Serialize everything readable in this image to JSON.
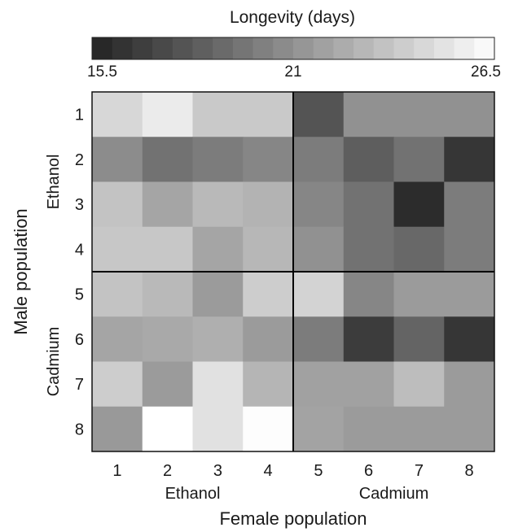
{
  "chart_data": {
    "type": "heatmap",
    "title": "",
    "xlabel": "Female population",
    "ylabel": "Male population",
    "x_categories": [
      "1",
      "2",
      "3",
      "4",
      "5",
      "6",
      "7",
      "8"
    ],
    "y_categories": [
      "1",
      "2",
      "3",
      "4",
      "5",
      "6",
      "7",
      "8"
    ],
    "x_groups": [
      {
        "label": "Ethanol",
        "members": [
          "1",
          "2",
          "3",
          "4"
        ]
      },
      {
        "label": "Cadmium",
        "members": [
          "5",
          "6",
          "7",
          "8"
        ]
      }
    ],
    "y_groups": [
      {
        "label": "Ethanol",
        "members": [
          "1",
          "2",
          "3",
          "4"
        ]
      },
      {
        "label": "Cadmium",
        "members": [
          "5",
          "6",
          "7",
          "8"
        ]
      }
    ],
    "values": [
      [
        24.5,
        25.5,
        23.8,
        23.8,
        18.0,
        21.0,
        21.0,
        21.0
      ],
      [
        20.8,
        19.5,
        20.0,
        20.5,
        20.0,
        18.5,
        19.5,
        16.5
      ],
      [
        23.5,
        22.0,
        23.0,
        22.7,
        20.5,
        19.5,
        16.0,
        20.0
      ],
      [
        23.7,
        23.7,
        22.0,
        22.9,
        21.0,
        19.5,
        19.0,
        20.0
      ],
      [
        23.5,
        23.0,
        21.5,
        24.0,
        24.3,
        20.5,
        21.5,
        21.5
      ],
      [
        22.0,
        22.2,
        22.5,
        21.5,
        20.0,
        16.8,
        18.8,
        16.5
      ],
      [
        24.0,
        21.5,
        25.0,
        22.8,
        21.8,
        21.8,
        23.2,
        21.5
      ],
      [
        21.4,
        26.5,
        25.0,
        26.4,
        21.9,
        21.5,
        21.5,
        21.5
      ]
    ],
    "colorbar": {
      "title": "Longevity (days)",
      "min": 15.5,
      "max": 26.5,
      "tick_labels": [
        "15.5",
        "21",
        "26.5"
      ],
      "tick_values": [
        15.5,
        21,
        26.5
      ],
      "segments": 20,
      "color_low": "#222222",
      "color_high": "#ffffff"
    },
    "grid": false,
    "group_divider_color": "#000000"
  }
}
